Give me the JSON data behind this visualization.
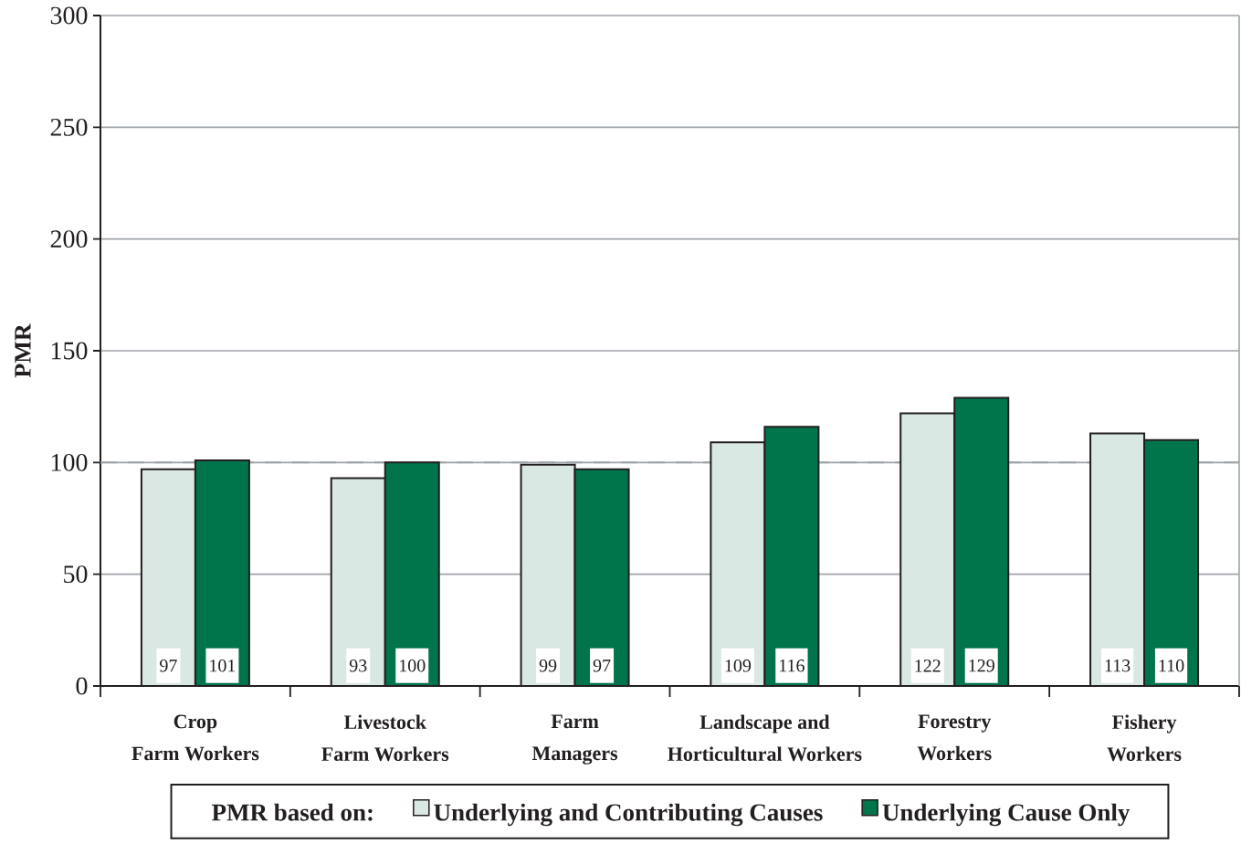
{
  "chart_data": {
    "type": "bar",
    "ylabel": "PMR",
    "legend_title": "PMR based on:",
    "categories": [
      "Crop\nFarm Workers",
      "Livestock\nFarm Workers",
      "Farm\nManagers",
      "Landscape and\nHorticultural Workers",
      "Forestry\nWorkers",
      "Fishery\nWorkers"
    ],
    "series": [
      {
        "name": "Underlying and Contributing Causes",
        "color": "#d9e8e2",
        "values": [
          97,
          93,
          99,
          109,
          122,
          113
        ]
      },
      {
        "name": "Underlying Cause Only",
        "color": "#00744a",
        "values": [
          101,
          100,
          97,
          116,
          129,
          110
        ]
      }
    ],
    "ylim": [
      0,
      300
    ],
    "yticks": [
      0,
      50,
      100,
      150,
      200,
      250,
      300
    ],
    "grid": "y",
    "legend": "bottom",
    "data_labels": true,
    "ref_lines": [
      {
        "axis": "y",
        "value": 100,
        "color": "#a0a5aa",
        "line_style": "dashed"
      }
    ]
  }
}
